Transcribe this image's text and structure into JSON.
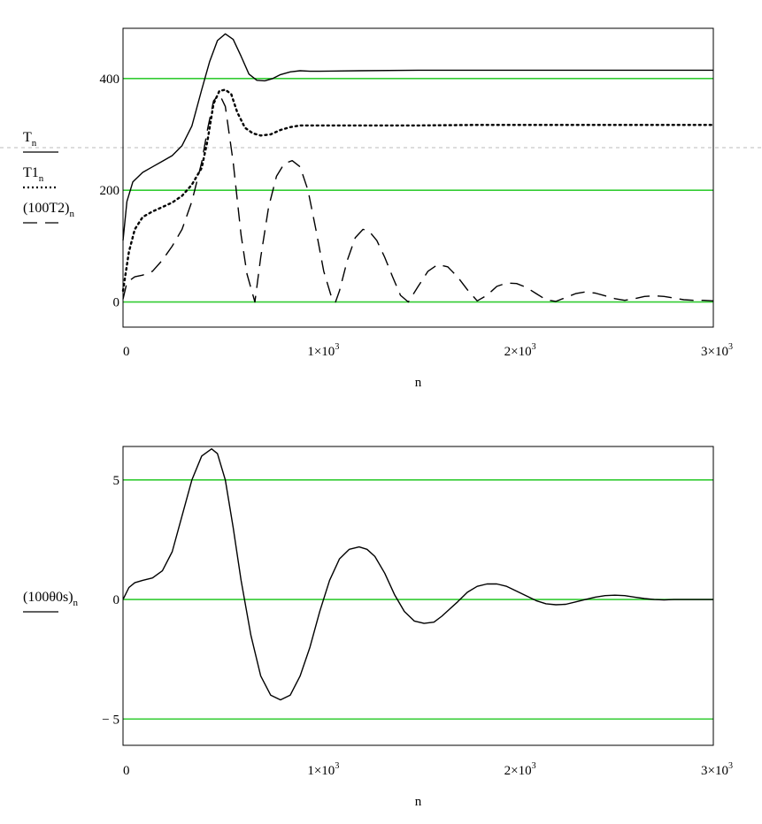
{
  "chart_data": [
    {
      "type": "line",
      "xlabel": "n",
      "xlim": [
        0,
        3000
      ],
      "ylim": [
        -45,
        490
      ],
      "xticks": [
        {
          "value": 0,
          "label": "0"
        },
        {
          "value": 1000,
          "label": "1×10",
          "sup": "3"
        },
        {
          "value": 2000,
          "label": "2×10",
          "sup": "3"
        },
        {
          "value": 3000,
          "label": "3×10",
          "sup": "3"
        }
      ],
      "yticks": [
        {
          "value": 0,
          "label": "0"
        },
        {
          "value": 200,
          "label": "200"
        },
        {
          "value": 400,
          "label": "400"
        }
      ],
      "gridlines_y": [
        0,
        200,
        400
      ],
      "grid_color": "#33cc33",
      "legend": [
        {
          "base": "T",
          "sub": "n",
          "style": "solid"
        },
        {
          "base": "T1",
          "sub": "n",
          "style": "dotted"
        },
        {
          "base": "(100T2)",
          "sub": "n",
          "style": "dashed"
        }
      ],
      "series": [
        {
          "style": "solid",
          "x": [
            0,
            20,
            50,
            100,
            150,
            200,
            250,
            300,
            350,
            400,
            440,
            480,
            520,
            560,
            600,
            640,
            680,
            720,
            760,
            800,
            850,
            900,
            950,
            1000,
            1200,
            1500,
            1800,
            2100,
            2400,
            2700,
            3000
          ],
          "y": [
            110,
            180,
            215,
            232,
            242,
            252,
            262,
            280,
            315,
            380,
            430,
            468,
            480,
            470,
            440,
            408,
            397,
            396,
            400,
            407,
            412,
            414,
            413,
            413,
            414,
            415,
            415,
            415,
            415,
            415,
            415
          ]
        },
        {
          "style": "dotted",
          "x": [
            0,
            30,
            60,
            100,
            150,
            200,
            250,
            300,
            350,
            400,
            430,
            460,
            490,
            520,
            550,
            580,
            620,
            660,
            700,
            750,
            800,
            850,
            900,
            950,
            1000,
            1200,
            1500,
            1800,
            2100,
            2400,
            2700,
            3000
          ],
          "y": [
            20,
            90,
            130,
            152,
            162,
            170,
            178,
            190,
            210,
            240,
            290,
            355,
            378,
            380,
            372,
            340,
            312,
            302,
            298,
            300,
            308,
            313,
            316,
            316,
            316,
            316,
            316,
            317,
            317,
            317,
            317,
            317
          ]
        },
        {
          "style": "dashed",
          "x": [
            0,
            20,
            60,
            100,
            150,
            200,
            250,
            300,
            350,
            400,
            430,
            460,
            490,
            520,
            560,
            600,
            630,
            670,
            700,
            740,
            780,
            820,
            860,
            900,
            940,
            980,
            1020,
            1060,
            1080,
            1100,
            1140,
            1180,
            1220,
            1250,
            1290,
            1330,
            1370,
            1410,
            1450,
            1500,
            1550,
            1600,
            1650,
            1700,
            1750,
            1800,
            1850,
            1900,
            1950,
            2000,
            2050,
            2100,
            2150,
            2200,
            2250,
            2300,
            2350,
            2400,
            2450,
            2500,
            2550,
            2600,
            2650,
            2700,
            2750,
            2800,
            2850,
            2900,
            2950,
            3000
          ],
          "y": [
            5,
            35,
            45,
            48,
            55,
            75,
            100,
            130,
            180,
            250,
            310,
            360,
            372,
            350,
            250,
            120,
            50,
            0,
            80,
            170,
            225,
            248,
            253,
            242,
            200,
            130,
            55,
            8,
            0,
            20,
            75,
            115,
            130,
            127,
            110,
            80,
            45,
            12,
            0,
            28,
            55,
            67,
            63,
            45,
            22,
            2,
            12,
            28,
            34,
            33,
            26,
            15,
            4,
            1,
            8,
            15,
            18,
            16,
            11,
            6,
            3,
            6,
            10,
            11,
            10,
            7,
            4,
            3,
            3,
            2
          ]
        }
      ]
    },
    {
      "type": "line",
      "xlabel": "n",
      "xlim": [
        0,
        3000
      ],
      "ylim": [
        -6.1,
        6.4
      ],
      "xticks": [
        {
          "value": 0,
          "label": "0"
        },
        {
          "value": 1000,
          "label": "1×10",
          "sup": "3"
        },
        {
          "value": 2000,
          "label": "2×10",
          "sup": "3"
        },
        {
          "value": 3000,
          "label": "3×10",
          "sup": "3"
        }
      ],
      "yticks": [
        {
          "value": -5,
          "label": "− 5"
        },
        {
          "value": 0,
          "label": "0"
        },
        {
          "value": 5,
          "label": "5"
        }
      ],
      "gridlines_y": [
        -5,
        0,
        5
      ],
      "grid_color": "#33cc33",
      "legend": [
        {
          "base": "(100θ0s)",
          "sub": "n",
          "style": "solid"
        }
      ],
      "series": [
        {
          "style": "solid",
          "x": [
            0,
            30,
            60,
            100,
            150,
            200,
            250,
            300,
            350,
            400,
            450,
            480,
            520,
            560,
            600,
            650,
            700,
            750,
            800,
            850,
            900,
            950,
            1000,
            1050,
            1100,
            1150,
            1200,
            1240,
            1280,
            1330,
            1380,
            1430,
            1480,
            1530,
            1580,
            1620,
            1660,
            1700,
            1750,
            1800,
            1850,
            1900,
            1950,
            2000,
            2050,
            2100,
            2150,
            2200,
            2250,
            2300,
            2350,
            2400,
            2450,
            2500,
            2550,
            2600,
            2650,
            2700,
            2750,
            2800,
            2850,
            2900,
            2950,
            3000
          ],
          "y": [
            0,
            0.5,
            0.7,
            0.8,
            0.9,
            1.2,
            2.0,
            3.5,
            5.0,
            6.0,
            6.3,
            6.1,
            5.0,
            3.0,
            0.8,
            -1.5,
            -3.2,
            -4.0,
            -4.2,
            -4.0,
            -3.2,
            -2.0,
            -0.5,
            0.8,
            1.7,
            2.1,
            2.2,
            2.1,
            1.8,
            1.1,
            0.2,
            -0.5,
            -0.9,
            -1.0,
            -0.95,
            -0.7,
            -0.4,
            -0.1,
            0.3,
            0.55,
            0.65,
            0.65,
            0.55,
            0.35,
            0.15,
            -0.05,
            -0.18,
            -0.22,
            -0.2,
            -0.1,
            0.0,
            0.1,
            0.16,
            0.18,
            0.16,
            0.1,
            0.04,
            0.0,
            -0.02,
            0.0,
            0.0,
            0.0,
            0.0,
            0.0
          ]
        }
      ]
    }
  ]
}
